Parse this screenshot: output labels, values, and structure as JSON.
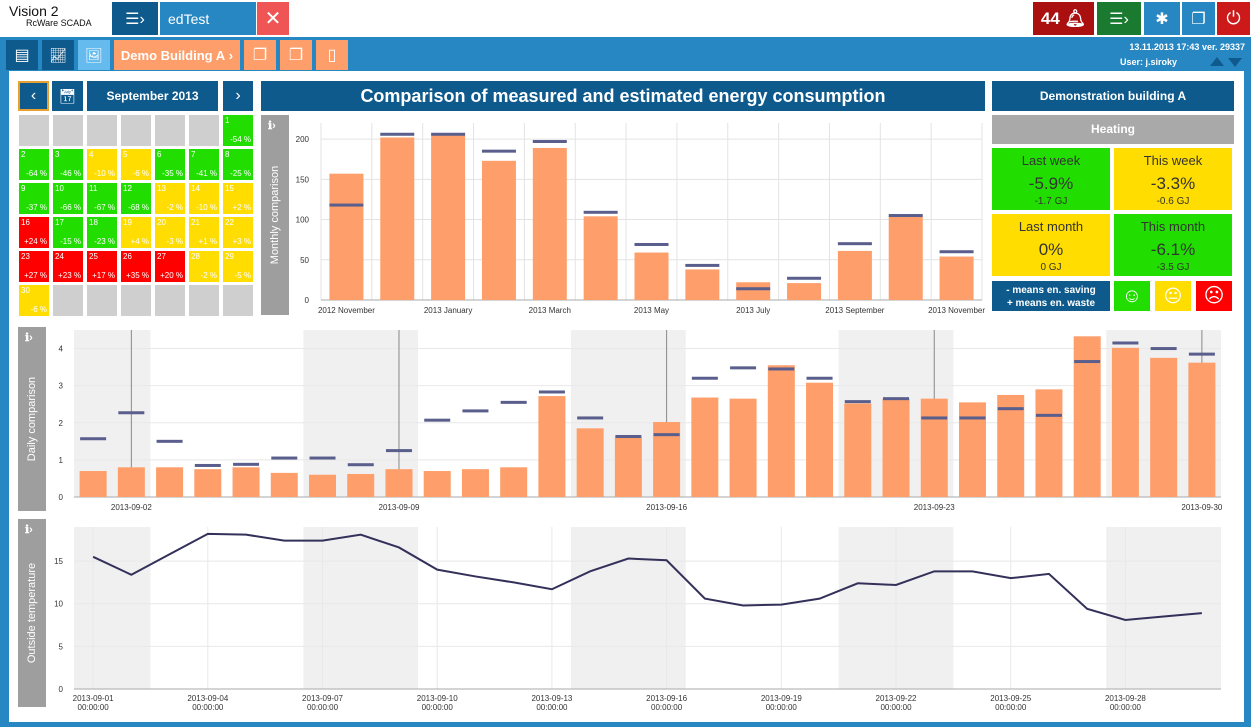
{
  "app": {
    "title": "Vision 2",
    "subtitle": "RcWare SCADA",
    "active_tab": "edTest",
    "alarm_count": "44"
  },
  "nav": {
    "building": "Demo Building A",
    "datetime_version": "13.11.2013 17:43 ver. 29337",
    "user": "User: j.siroky"
  },
  "calendar": {
    "month": "September 2013",
    "cells": [
      {
        "day": "1",
        "pct": "-54 %",
        "status": "good"
      },
      {
        "day": "2",
        "pct": "-64 %",
        "status": "good"
      },
      {
        "day": "3",
        "pct": "-46 %",
        "status": "good"
      },
      {
        "day": "4",
        "pct": "-10 %",
        "status": "neutral"
      },
      {
        "day": "5",
        "pct": "-6 %",
        "status": "neutral"
      },
      {
        "day": "6",
        "pct": "-35 %",
        "status": "good"
      },
      {
        "day": "7",
        "pct": "-41 %",
        "status": "good"
      },
      {
        "day": "8",
        "pct": "-25 %",
        "status": "good"
      },
      {
        "day": "9",
        "pct": "-37 %",
        "status": "good"
      },
      {
        "day": "10",
        "pct": "-66 %",
        "status": "good"
      },
      {
        "day": "11",
        "pct": "-67 %",
        "status": "good"
      },
      {
        "day": "12",
        "pct": "-68 %",
        "status": "good"
      },
      {
        "day": "13",
        "pct": "-2 %",
        "status": "neutral"
      },
      {
        "day": "14",
        "pct": "-10 %",
        "status": "neutral"
      },
      {
        "day": "15",
        "pct": "+2 %",
        "status": "neutral"
      },
      {
        "day": "16",
        "pct": "+24 %",
        "status": "bad"
      },
      {
        "day": "17",
        "pct": "-15 %",
        "status": "good"
      },
      {
        "day": "18",
        "pct": "-23 %",
        "status": "good"
      },
      {
        "day": "19",
        "pct": "+4 %",
        "status": "neutral"
      },
      {
        "day": "20",
        "pct": "-3 %",
        "status": "neutral"
      },
      {
        "day": "21",
        "pct": "+1 %",
        "status": "neutral"
      },
      {
        "day": "22",
        "pct": "+3 %",
        "status": "neutral"
      },
      {
        "day": "23",
        "pct": "+27 %",
        "status": "bad"
      },
      {
        "day": "24",
        "pct": "+23 %",
        "status": "bad"
      },
      {
        "day": "25",
        "pct": "+17 %",
        "status": "bad"
      },
      {
        "day": "26",
        "pct": "+35 %",
        "status": "bad"
      },
      {
        "day": "27",
        "pct": "+20 %",
        "status": "bad"
      },
      {
        "day": "28",
        "pct": "-2 %",
        "status": "neutral"
      },
      {
        "day": "29",
        "pct": "-5 %",
        "status": "neutral"
      },
      {
        "day": "30",
        "pct": "-6 %",
        "status": "neutral"
      }
    ]
  },
  "main_title": "Comparison of measured and estimated energy consumption",
  "summary": {
    "building_name": "Demonstration building A",
    "category": "Heating",
    "kpis": [
      {
        "label": "Last week",
        "value": "-5.9%",
        "gj": "-1.7 GJ",
        "color": "#22dd00"
      },
      {
        "label": "This week",
        "value": "-3.3%",
        "gj": "-0.6 GJ",
        "color": "#ffdd00"
      },
      {
        "label": "Last month",
        "value": "0%",
        "gj": "0 GJ",
        "color": "#ffdd00"
      },
      {
        "label": "This month",
        "value": "-6.1%",
        "gj": "-3.5 GJ",
        "color": "#22dd00"
      }
    ],
    "legend_line1": "- means en. saving",
    "legend_line2": "+ means en. waste"
  },
  "colors": {
    "measured": "#fe9e6a",
    "estimated": "#5a5e8c",
    "good": "#22dd00",
    "neutral": "#ffdd00",
    "bad": "#ff0000",
    "frame": "#2787c3",
    "navy": "#0f5a8c"
  },
  "chart_data": [
    {
      "type": "bar",
      "ylabel": "Monthly comparison",
      "ylim": [
        0,
        220
      ],
      "yticks": [
        0,
        50,
        100,
        150,
        200
      ],
      "categories": [
        "2012 November",
        "2012 December",
        "2013 January",
        "2013 February",
        "2013 March",
        "2013 April",
        "2013 May",
        "2013 June",
        "2013 July",
        "2013 August",
        "2013 September",
        "2013 October",
        "2013 November"
      ],
      "tick_labels": [
        "2012 November",
        "",
        "2013 January",
        "",
        "2013 March",
        "",
        "2013 May",
        "",
        "2013 July",
        "",
        "2013 September",
        "",
        "2013 November"
      ],
      "series": [
        {
          "values": [
            157,
            202,
            205,
            173,
            189,
            104,
            59,
            38,
            22,
            21,
            61,
            104,
            54
          ]
        },
        {
          "values": [
            118,
            206,
            206,
            185,
            197,
            109,
            69,
            43,
            14,
            27,
            70,
            105,
            60
          ]
        }
      ]
    },
    {
      "type": "bar",
      "ylabel": "Daily comparison",
      "ylim": [
        0,
        4.5
      ],
      "yticks": [
        0,
        1,
        2,
        3,
        4
      ],
      "x": [
        "2013-09-01",
        "2013-09-02",
        "2013-09-03",
        "2013-09-04",
        "2013-09-05",
        "2013-09-06",
        "2013-09-07",
        "2013-09-08",
        "2013-09-09",
        "2013-09-10",
        "2013-09-11",
        "2013-09-12",
        "2013-09-13",
        "2013-09-14",
        "2013-09-15",
        "2013-09-16",
        "2013-09-17",
        "2013-09-18",
        "2013-09-19",
        "2013-09-20",
        "2013-09-21",
        "2013-09-22",
        "2013-09-23",
        "2013-09-24",
        "2013-09-25",
        "2013-09-26",
        "2013-09-27",
        "2013-09-28",
        "2013-09-29",
        "2013-09-30"
      ],
      "tick_labels": [
        "2013-09-02",
        "2013-09-09",
        "2013-09-16",
        "2013-09-23",
        "2013-09-30"
      ],
      "series": [
        {
          "values": [
            0.7,
            0.8,
            0.8,
            0.75,
            0.8,
            0.65,
            0.6,
            0.62,
            0.75,
            0.7,
            0.75,
            0.8,
            2.72,
            1.85,
            1.6,
            2.02,
            2.68,
            2.65,
            3.55,
            3.08,
            2.52,
            2.65,
            2.65,
            2.55,
            2.75,
            2.9,
            4.33,
            4.02,
            3.75,
            3.62
          ]
        },
        {
          "values": [
            1.57,
            2.27,
            1.5,
            0.85,
            0.88,
            1.05,
            1.05,
            0.87,
            1.25,
            2.07,
            2.32,
            2.55,
            2.83,
            2.13,
            1.63,
            1.68,
            3.2,
            3.48,
            3.45,
            3.2,
            2.57,
            2.65,
            2.13,
            2.13,
            2.38,
            2.2,
            3.65,
            4.15,
            4.0,
            3.85
          ]
        }
      ]
    },
    {
      "type": "line",
      "ylabel": "Outside temperature",
      "ylim": [
        0,
        19
      ],
      "yticks": [
        0,
        5,
        10,
        15
      ],
      "x": [
        "2013-09-01",
        "2013-09-02",
        "2013-09-03",
        "2013-09-04",
        "2013-09-05",
        "2013-09-06",
        "2013-09-07",
        "2013-09-08",
        "2013-09-09",
        "2013-09-10",
        "2013-09-11",
        "2013-09-12",
        "2013-09-13",
        "2013-09-14",
        "2013-09-15",
        "2013-09-16",
        "2013-09-17",
        "2013-09-18",
        "2013-09-19",
        "2013-09-20",
        "2013-09-21",
        "2013-09-22",
        "2013-09-23",
        "2013-09-24",
        "2013-09-25",
        "2013-09-26",
        "2013-09-27",
        "2013-09-28",
        "2013-09-29",
        "2013-09-30"
      ],
      "tick_labels": [
        "2013-09-01",
        "2013-09-04",
        "2013-09-07",
        "2013-09-10",
        "2013-09-13",
        "2013-09-16",
        "2013-09-19",
        "2013-09-22",
        "2013-09-25",
        "2013-09-28"
      ],
      "time_label": "00:00:00",
      "series": [
        {
          "values": [
            15.5,
            13.4,
            15.8,
            18.2,
            18.1,
            17.4,
            17.4,
            18.1,
            16.6,
            14.0,
            13.2,
            12.5,
            11.7,
            13.8,
            15.3,
            15.1,
            10.6,
            9.8,
            9.9,
            10.6,
            12.4,
            12.2,
            13.8,
            13.8,
            13.0,
            13.5,
            9.4,
            8.1,
            8.5,
            8.9
          ]
        }
      ]
    }
  ]
}
